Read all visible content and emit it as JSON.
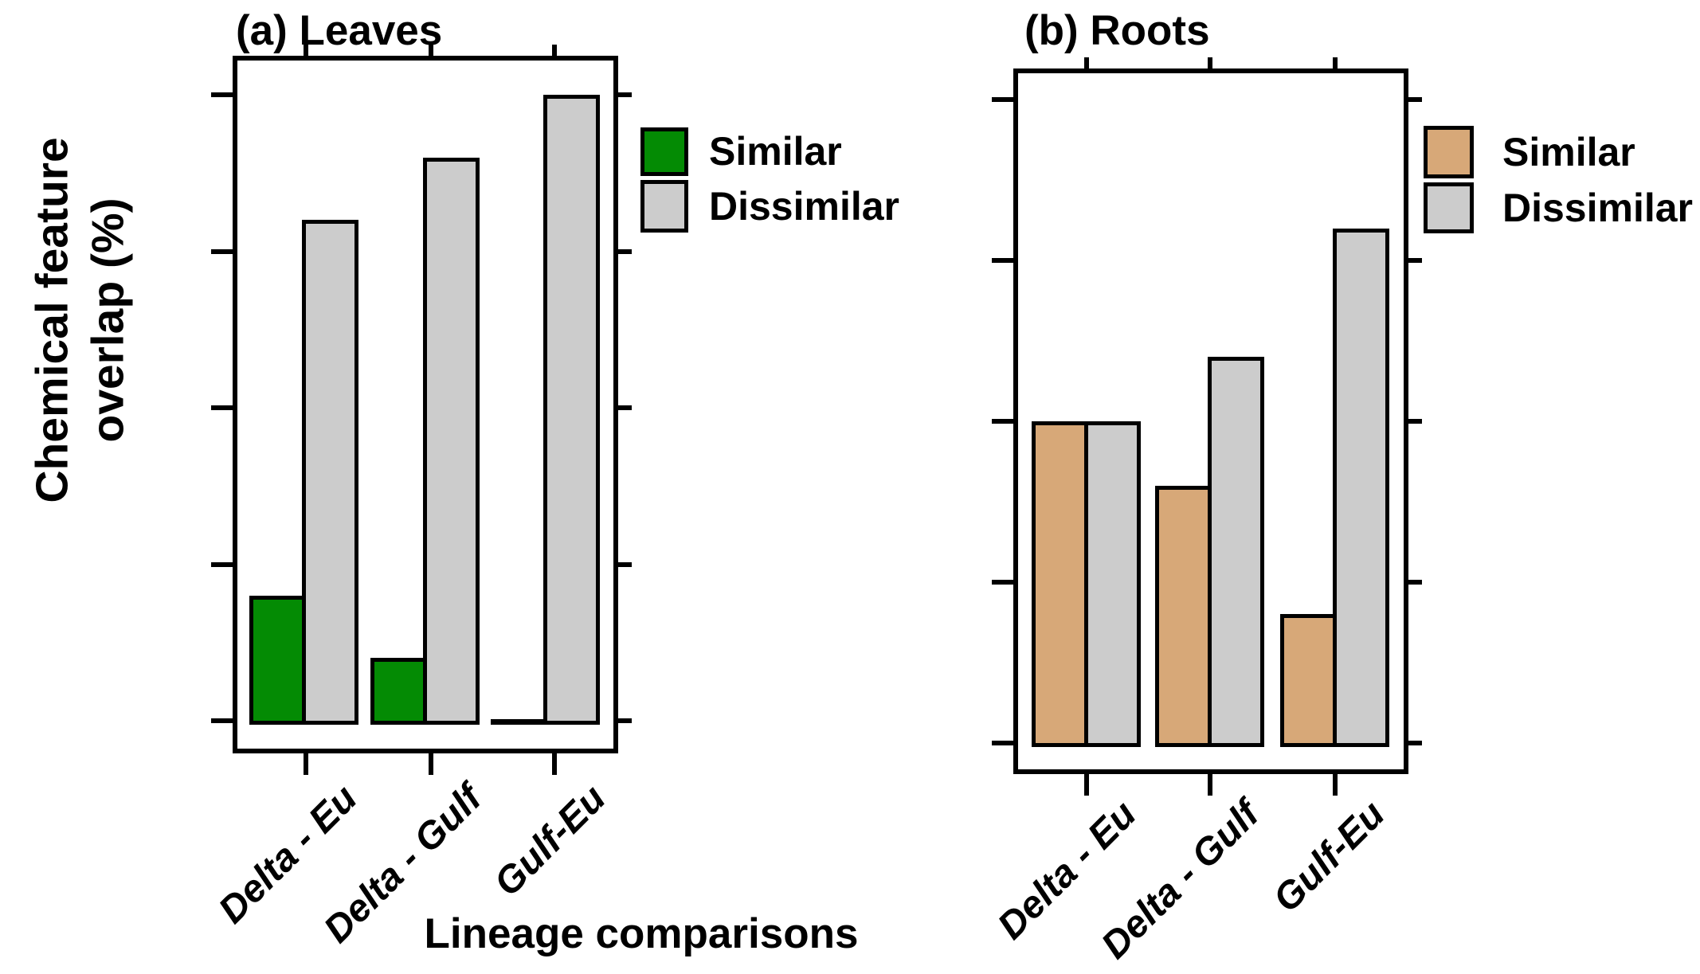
{
  "figure": {
    "y_axis_title_line1": "Chemical feature",
    "y_axis_title_line2": "overlap (%)",
    "x_axis_title": "Lineage comparisons",
    "legend": {
      "similar_label": "Similar",
      "dissimilar_label": "Dissimilar"
    },
    "colors": {
      "leaves_similar": "#048B04",
      "roots_similar": "#D7A878",
      "dissimilar": "#CCCCCC",
      "outline": "#000000",
      "background": "#FFFFFF"
    }
  },
  "chart_data": [
    {
      "type": "bar",
      "panel": "a",
      "title": "(a) Leaves",
      "categories": [
        "Delta - Eu",
        "Delta - Gulf",
        "Gulf-Eu"
      ],
      "series": [
        {
          "name": "Similar",
          "color": "#048B04",
          "values": [
            16,
            8,
            0
          ]
        },
        {
          "name": "Dissimilar",
          "color": "#CCCCCC",
          "values": [
            64,
            72,
            80
          ]
        }
      ],
      "ylabel": "Chemical feature overlap (%)",
      "xlabel": "Lineage comparisons",
      "ylim": [
        0,
        80
      ],
      "yticks": [
        0,
        20,
        40,
        60,
        80
      ],
      "ytick_labels_shown": false,
      "grid": false,
      "legend_position": "right-of-panel-top",
      "xtick_label_rotation_deg": 45,
      "xtick_label_style": "italic"
    },
    {
      "type": "bar",
      "panel": "b",
      "title": "(b) Roots",
      "categories": [
        "Delta - Eu",
        "Delta - Gulf",
        "Gulf-Eu"
      ],
      "series": [
        {
          "name": "Similar",
          "color": "#D7A878",
          "values": [
            40,
            32,
            16
          ]
        },
        {
          "name": "Dissimilar",
          "color": "#CCCCCC",
          "values": [
            40,
            48,
            64
          ]
        }
      ],
      "ylabel": "Chemical feature overlap (%)",
      "xlabel": "Lineage comparisons",
      "ylim": [
        0,
        80
      ],
      "yticks": [
        0,
        20,
        40,
        60,
        80
      ],
      "ytick_labels_shown": false,
      "grid": false,
      "legend_position": "right-of-panel-top",
      "xtick_label_rotation_deg": 45,
      "xtick_label_style": "italic"
    }
  ]
}
